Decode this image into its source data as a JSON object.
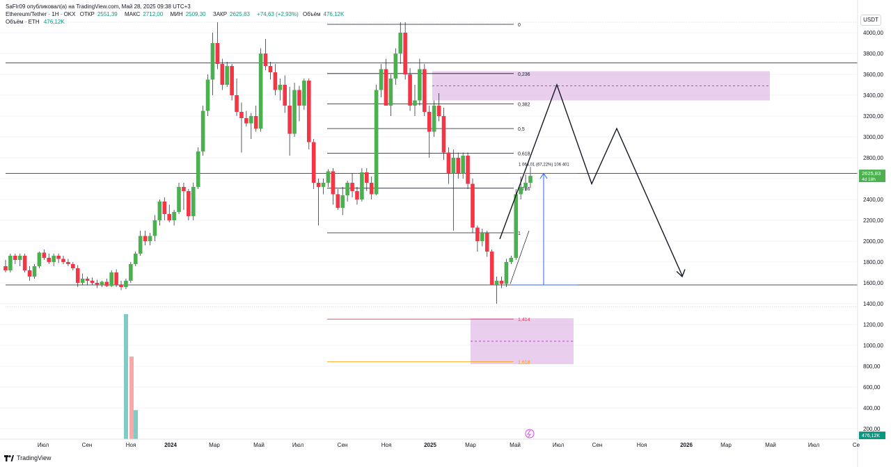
{
  "header": {
    "publisher": "SaFIr09 опубликовал(а) на TradingView.com, Май 28, 2025 09:38 UTC+3",
    "symbol": "Ethereum/Tether · 1Н · OKX",
    "open_label": "ОТКР",
    "open_value": "2551,39",
    "high_label": "МАКС",
    "high_value": "2712,00",
    "low_label": "МИН",
    "low_value": "2509,30",
    "close_label": "ЗАКР",
    "close_value": "2625,83",
    "change": "+74,63 (+2,93%)",
    "volume_label": "Объём",
    "volume_value": "476,12K",
    "volume_row_label": "Объём · ETH",
    "volume_row_value": "476,12K"
  },
  "currency_button": "USDT",
  "footer": {
    "brand": "TradingView"
  },
  "colors": {
    "up": "#4caf50",
    "down": "#f23645",
    "vol_up": "#80cbc4",
    "vol_down": "#f7a9a7",
    "zone": "#e1bee7",
    "line": "#131722",
    "price_tag": "#4caf50",
    "arrow": "#2962ff",
    "fib_1414": "#f23645",
    "fib_1618": "#ff9800"
  },
  "chart_data": {
    "type": "candlestick",
    "pair": "ETH/USDT",
    "y_axis": {
      "min": 200,
      "max": 4000,
      "ticks": [
        "4000,00",
        "3800,00",
        "3600,00",
        "3400,00",
        "3200,00",
        "3000,00",
        "2800,00",
        "2600,00",
        "2400,00",
        "2200,00",
        "2000,00",
        "1800,00",
        "1600,00",
        "1400,00",
        "1200,00",
        "1000,00",
        "800,00",
        "600,00",
        "400,00",
        "200,00"
      ]
    },
    "x_axis_labels": [
      "Июл",
      "Сен",
      "Ноя",
      "2024",
      "Мар",
      "Май",
      "Июл",
      "Сен",
      "Ноя",
      "2025",
      "Мар",
      "Май",
      "Июл",
      "Сен",
      "Ноя",
      "2026",
      "Мар",
      "Май",
      "Июл",
      "Се"
    ],
    "current_price": "2625,83",
    "price_countdown": "4d 18h",
    "volume_last": "476,12K",
    "horizontal_levels": [
      3710,
      2650,
      1580
    ],
    "fibonacci": {
      "high": 4080,
      "low": 2080,
      "levels": [
        {
          "ratio": "0",
          "price": 4080
        },
        {
          "ratio": "0,236",
          "price": 3608
        },
        {
          "ratio": "0,382",
          "price": 3316
        },
        {
          "ratio": "0,5",
          "price": 3080
        },
        {
          "ratio": "0,618",
          "price": 2844
        },
        {
          "ratio": "0,786",
          "price": 2508
        },
        {
          "ratio": "1",
          "price": 2080
        },
        {
          "ratio": "1,414",
          "price": 1252
        },
        {
          "ratio": "1,618",
          "price": 844
        }
      ]
    },
    "zones": [
      {
        "name": "upper",
        "from": 3350,
        "to": 3630
      },
      {
        "name": "lower",
        "from": 820,
        "to": 1260
      }
    ],
    "measure_label": "1 064,01 (67,22%) 106 401",
    "candles": [
      [
        1760,
        1820,
        1700,
        1720
      ],
      [
        1720,
        1880,
        1700,
        1860
      ],
      [
        1860,
        1880,
        1780,
        1820
      ],
      [
        1820,
        1880,
        1760,
        1860
      ],
      [
        1860,
        1880,
        1700,
        1720
      ],
      [
        1720,
        1760,
        1620,
        1660
      ],
      [
        1660,
        1780,
        1640,
        1760
      ],
      [
        1760,
        1900,
        1740,
        1890
      ],
      [
        1890,
        1920,
        1820,
        1840
      ],
      [
        1840,
        1880,
        1780,
        1800
      ],
      [
        1800,
        1880,
        1760,
        1860
      ],
      [
        1860,
        1880,
        1790,
        1830
      ],
      [
        1830,
        1860,
        1780,
        1800
      ],
      [
        1800,
        1830,
        1760,
        1780
      ],
      [
        1780,
        1800,
        1720,
        1740
      ],
      [
        1740,
        1770,
        1560,
        1600
      ],
      [
        1600,
        1690,
        1580,
        1640
      ],
      [
        1640,
        1660,
        1580,
        1620
      ],
      [
        1620,
        1650,
        1580,
        1600
      ],
      [
        1600,
        1630,
        1550,
        1580
      ],
      [
        1580,
        1620,
        1560,
        1610
      ],
      [
        1610,
        1640,
        1560,
        1570
      ],
      [
        1570,
        1720,
        1560,
        1700
      ],
      [
        1700,
        1730,
        1560,
        1580
      ],
      [
        1580,
        1620,
        1530,
        1560
      ],
      [
        1560,
        1640,
        1540,
        1620
      ],
      [
        1620,
        1800,
        1600,
        1780
      ],
      [
        1780,
        1900,
        1760,
        1880
      ],
      [
        1880,
        2100,
        1860,
        2050
      ],
      [
        2050,
        2100,
        1960,
        2000
      ],
      [
        2000,
        2080,
        1960,
        2050
      ],
      [
        2050,
        2250,
        2000,
        2200
      ],
      [
        2200,
        2400,
        2150,
        2380
      ],
      [
        2380,
        2420,
        2200,
        2260
      ],
      [
        2260,
        2350,
        2180,
        2200
      ],
      [
        2200,
        2300,
        2150,
        2280
      ],
      [
        2280,
        2560,
        2260,
        2520
      ],
      [
        2520,
        2560,
        2300,
        2480
      ],
      [
        2480,
        2500,
        2200,
        2240
      ],
      [
        2240,
        2560,
        2200,
        2520
      ],
      [
        2520,
        2900,
        2500,
        2860
      ],
      [
        2860,
        3300,
        2820,
        3250
      ],
      [
        3250,
        3600,
        3200,
        3550
      ],
      [
        3550,
        4000,
        3400,
        3900
      ],
      [
        3900,
        4100,
        3650,
        3700
      ],
      [
        3700,
        3750,
        3450,
        3500
      ],
      [
        3500,
        3720,
        3480,
        3680
      ],
      [
        3680,
        3700,
        3350,
        3400
      ],
      [
        3400,
        3560,
        3200,
        3240
      ],
      [
        3240,
        3330,
        2850,
        3180
      ],
      [
        3180,
        3250,
        3100,
        3130
      ],
      [
        3130,
        3230,
        2980,
        3200
      ],
      [
        3200,
        3300,
        3050,
        3080
      ],
      [
        3080,
        3850,
        3050,
        3800
      ],
      [
        3800,
        3940,
        3640,
        3680
      ],
      [
        3680,
        3720,
        3550,
        3620
      ],
      [
        3620,
        3700,
        3400,
        3450
      ],
      [
        3450,
        3560,
        3350,
        3500
      ],
      [
        3500,
        3590,
        3230,
        3300
      ],
      [
        3300,
        3480,
        2820,
        3030
      ],
      [
        3030,
        3520,
        3000,
        3450
      ],
      [
        3450,
        3490,
        3150,
        3300
      ],
      [
        3300,
        3560,
        3260,
        3540
      ],
      [
        3540,
        3560,
        2880,
        2950
      ],
      [
        2950,
        2980,
        2500,
        2560
      ],
      [
        2560,
        2600,
        2150,
        2520
      ],
      [
        2520,
        2600,
        2450,
        2560
      ],
      [
        2560,
        2690,
        2520,
        2670
      ],
      [
        2670,
        2700,
        2350,
        2450
      ],
      [
        2450,
        2500,
        2300,
        2320
      ],
      [
        2320,
        2520,
        2250,
        2440
      ],
      [
        2440,
        2580,
        2380,
        2560
      ],
      [
        2560,
        2650,
        2420,
        2480
      ],
      [
        2480,
        2520,
        2350,
        2400
      ],
      [
        2400,
        2700,
        2380,
        2660
      ],
      [
        2660,
        2700,
        2480,
        2560
      ],
      [
        2560,
        2620,
        2400,
        2450
      ],
      [
        2450,
        3500,
        2440,
        3450
      ],
      [
        3450,
        3700,
        3380,
        3650
      ],
      [
        3650,
        3750,
        3300,
        3300
      ],
      [
        3300,
        3600,
        3200,
        3560
      ],
      [
        3560,
        3850,
        3500,
        3800
      ],
      [
        3800,
        4100,
        3700,
        4000
      ],
      [
        4000,
        4100,
        3550,
        3600
      ],
      [
        3600,
        3660,
        3250,
        3300
      ],
      [
        3300,
        3500,
        3200,
        3350
      ],
      [
        3350,
        3750,
        3300,
        3650
      ],
      [
        3650,
        3700,
        3200,
        3240
      ],
      [
        3240,
        3300,
        2800,
        3050
      ],
      [
        3050,
        3350,
        3000,
        3300
      ],
      [
        3300,
        3420,
        3150,
        3200
      ],
      [
        3200,
        3280,
        2780,
        2850
      ],
      [
        2850,
        2900,
        2550,
        2650
      ],
      [
        2650,
        2880,
        2100,
        2800
      ],
      [
        2800,
        2850,
        2600,
        2650
      ],
      [
        2650,
        2850,
        2600,
        2820
      ],
      [
        2820,
        2850,
        2500,
        2550
      ],
      [
        2550,
        2600,
        2080,
        2130
      ],
      [
        2130,
        2150,
        1900,
        2000
      ],
      [
        2000,
        2120,
        1950,
        2080
      ],
      [
        2080,
        2100,
        1850,
        1900
      ],
      [
        1900,
        1920,
        1580,
        1580
      ],
      [
        1580,
        1660,
        1400,
        1620
      ],
      [
        1620,
        1660,
        1550,
        1590
      ],
      [
        1590,
        1830,
        1560,
        1800
      ],
      [
        1800,
        1860,
        1780,
        1840
      ],
      [
        1840,
        2500,
        1820,
        2450
      ],
      [
        2450,
        2620,
        2400,
        2520
      ],
      [
        2520,
        2640,
        2480,
        2560
      ],
      [
        2560,
        2712,
        2509,
        2626
      ]
    ],
    "volumes": [
      {
        "value": 1120,
        "dir": "up"
      },
      {
        "value": 740,
        "dir": "down"
      },
      {
        "value": 260,
        "dir": "up"
      }
    ]
  }
}
